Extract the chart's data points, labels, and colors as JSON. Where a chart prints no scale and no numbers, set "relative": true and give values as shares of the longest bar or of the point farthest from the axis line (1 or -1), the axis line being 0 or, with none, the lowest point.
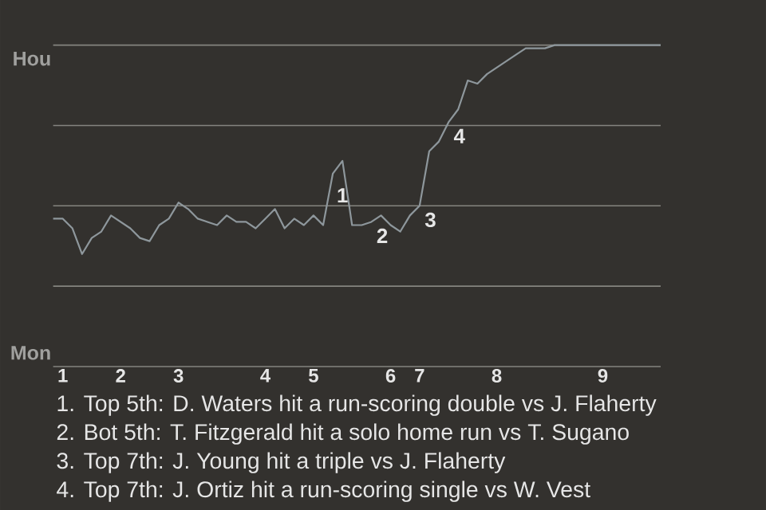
{
  "chart_data": {
    "type": "line",
    "relative": true,
    "categories": [
      null,
      "1",
      null,
      null,
      null,
      null,
      null,
      "2",
      null,
      null,
      null,
      null,
      null,
      "3",
      null,
      null,
      null,
      null,
      null,
      null,
      null,
      null,
      "4",
      null,
      null,
      null,
      null,
      "5",
      null,
      null,
      null,
      null,
      null,
      null,
      null,
      "6",
      null,
      null,
      "7",
      null,
      null,
      null,
      null,
      null,
      null,
      null,
      "8",
      null,
      null,
      null,
      null,
      null,
      null,
      null,
      null,
      null,
      null,
      "9",
      null,
      null,
      null,
      null,
      null,
      null
    ],
    "values": [
      0.46,
      0.46,
      0.43,
      0.35,
      0.4,
      0.42,
      0.47,
      0.45,
      0.43,
      0.4,
      0.39,
      0.44,
      0.46,
      0.51,
      0.49,
      0.46,
      0.45,
      0.44,
      0.47,
      0.45,
      0.45,
      0.43,
      0.46,
      0.49,
      0.43,
      0.46,
      0.44,
      0.47,
      0.44,
      0.6,
      0.64,
      0.44,
      0.44,
      0.45,
      0.47,
      0.44,
      0.42,
      0.47,
      0.5,
      0.67,
      0.7,
      0.76,
      0.8,
      0.89,
      0.88,
      0.91,
      0.93,
      0.95,
      0.97,
      0.99,
      0.99,
      0.99,
      1,
      1,
      1,
      1,
      1,
      1,
      1,
      1,
      1,
      1,
      1,
      1
    ],
    "color": "#8e979c",
    "ref_lines": [
      {
        "axis": "y",
        "value": 0,
        "color": "#85847f",
        "label": "Mon"
      },
      {
        "axis": "y",
        "value": 0.25,
        "color": "#85847f"
      },
      {
        "axis": "y",
        "value": 0.5,
        "color": "#85847f"
      },
      {
        "axis": "y",
        "value": 0.75,
        "color": "#85847f"
      },
      {
        "axis": "y",
        "value": 1,
        "color": "#85847f",
        "label": "Hou"
      }
    ],
    "annotations": [
      {
        "text": "1",
        "y": 0.64
      },
      {
        "text": "2",
        "y": 0.45
      },
      {
        "text": "3",
        "y": 0.5
      },
      {
        "text": "4",
        "y": 0.76
      },
      "1. Top 5th: D. Waters hit a run-scoring double vs J. Flaherty",
      "2. Bot 5th: T. Fitzgerald hit a solo home run vs T. Sugano",
      "3. Top 7th: J. Young hit a triple vs J. Flaherty",
      "4. Top 7th: J. Ortiz hit a run-scoring single vs W. Vest"
    ]
  }
}
